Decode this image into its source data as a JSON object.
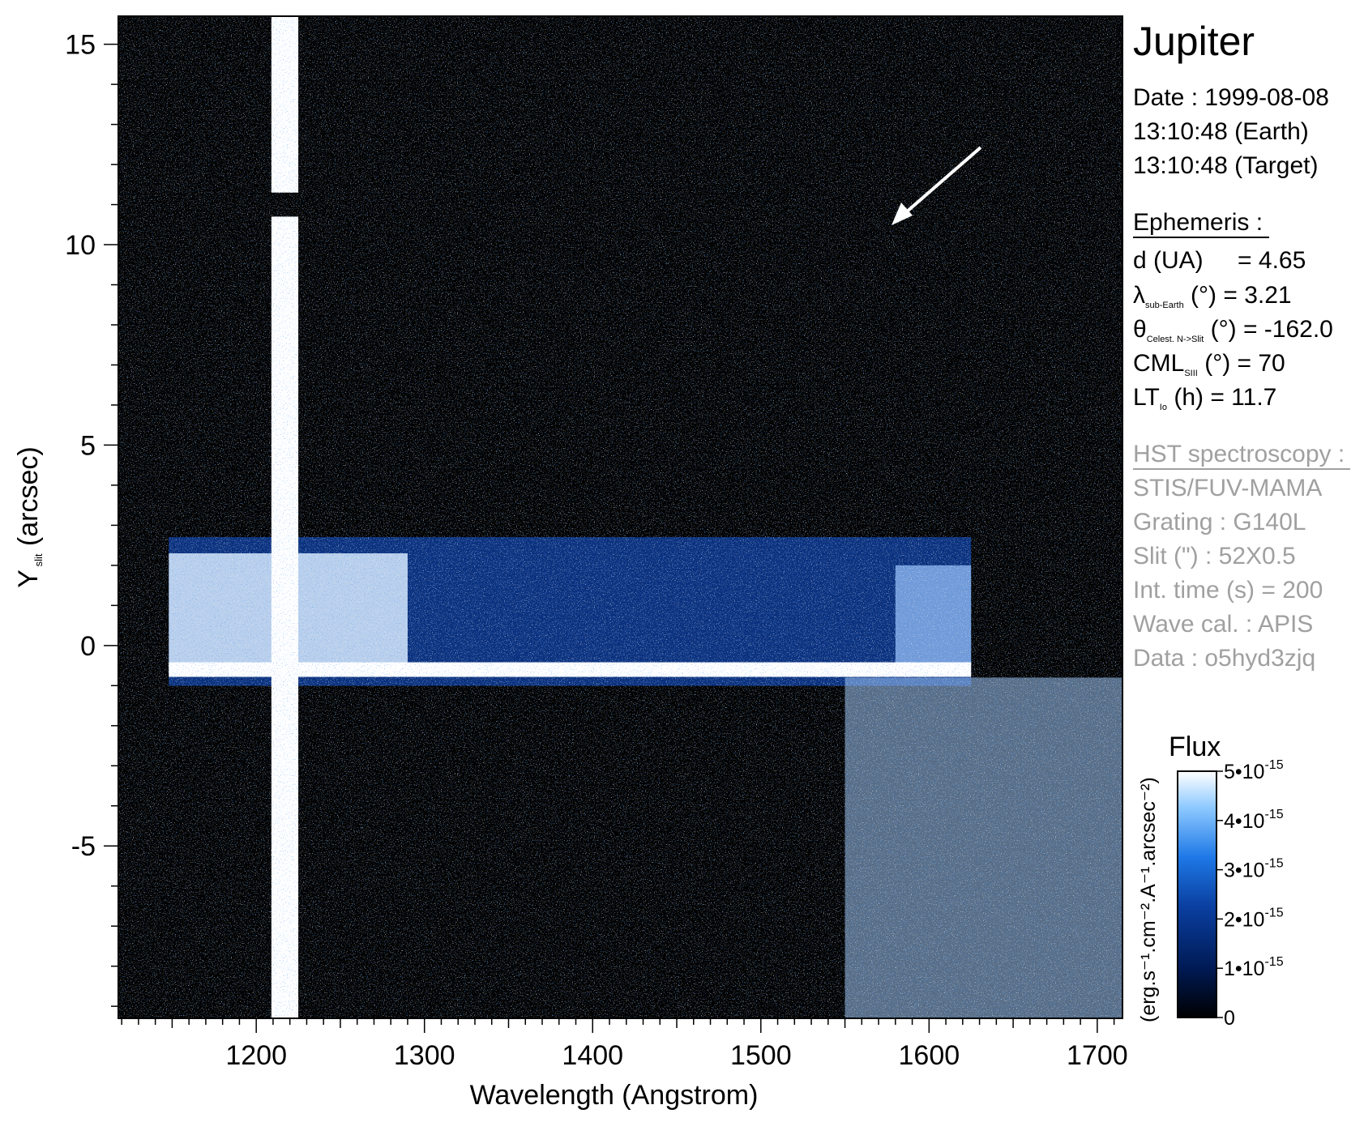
{
  "chart_data": {
    "type": "heatmap",
    "title": "Jupiter",
    "xlabel": "Wavelength (Angstrom)",
    "ylabel_main": "Y",
    "ylabel_sub": "slit",
    "ylabel_rest": " (arcsec)",
    "xlim": [
      1118,
      1715
    ],
    "ylim": [
      -9.3,
      15.7
    ],
    "x_ticks": [
      1200,
      1300,
      1400,
      1500,
      1600,
      1700
    ],
    "x_tick_labels": [
      "1200",
      "1300",
      "1400",
      "1500",
      "1600",
      "1700"
    ],
    "y_ticks": [
      15,
      10,
      5,
      0,
      -5
    ],
    "y_tick_labels": [
      "15",
      "10",
      "5",
      "0",
      "-5"
    ],
    "features": {
      "lyman_alpha_band_x": [
        1209,
        1225
      ],
      "lyman_alpha_gap_y": [
        10.7,
        11.3
      ],
      "emission_band_y": [
        -0.6,
        2.3
      ],
      "emission_band_x": [
        1148,
        1625
      ],
      "bright_core_row_y": -0.6,
      "noisy_region_x_start": 1550
    },
    "colorbar": {
      "title": "Flux",
      "unit_label": "(erg.s⁻¹.cm⁻².A⁻¹.arcsec⁻²)",
      "ticks": [
        0,
        1e-15,
        2e-15,
        3e-15,
        4e-15,
        5e-15
      ],
      "tick_labels": [
        "0",
        "1•10",
        "2•10",
        "3•10",
        "4•10",
        "5•10"
      ],
      "tick_exponent": "-15",
      "range": [
        0,
        5e-15
      ],
      "colors": [
        "#000000",
        "#001a55",
        "#0a3fa0",
        "#1e78e6",
        "#8cc8ff",
        "#ffffff"
      ]
    }
  },
  "info": {
    "title": "Jupiter",
    "date": "Date : 1999-08-08",
    "time_earth": "13:10:48 (Earth)",
    "time_target": "13:10:48 (Target)",
    "ephemeris_header": "Ephemeris :",
    "ephem": {
      "d_label": "d (UA)",
      "d_value": "= 4.65",
      "lambda_sym": "λ",
      "lambda_sub": "sub-Earth",
      "lambda_value": "(°)  = 3.21",
      "theta_sym": "θ",
      "theta_sub": "Celest. N->Slit",
      "theta_value": "(°) = -162.0",
      "cml_sym": "CML",
      "cml_sub": "SIII",
      "cml_value": "(°) = 70",
      "lt_sym": "LT",
      "lt_sub": "Io",
      "lt_value": "(h) = 11.7"
    },
    "hst_header": "HST spectroscopy :",
    "instrument": "STIS/FUV-MAMA",
    "grating": "Grating : G140L",
    "slit": "Slit (\") : 52X0.5",
    "int_time": "Int. time (s) = 200",
    "wave_cal": "Wave cal. : APIS",
    "data_id": "Data : o5hyd3zjq"
  },
  "annotation": {
    "arrow_icon": "arrow-icon"
  }
}
